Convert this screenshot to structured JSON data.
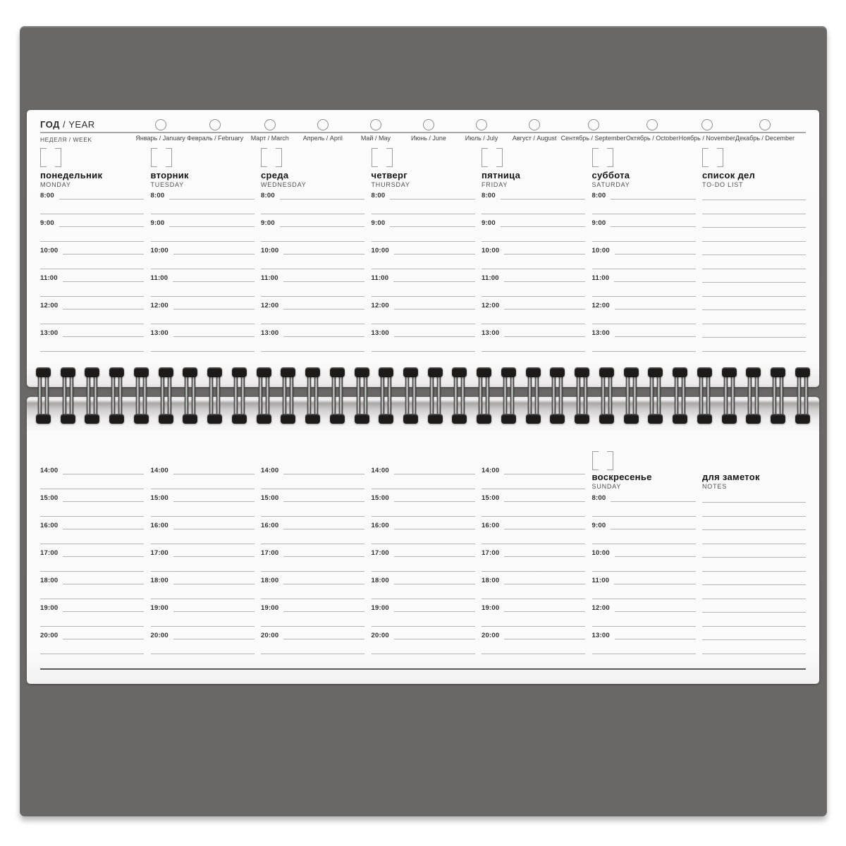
{
  "header": {
    "year_ru": "ГОД",
    "year_sep": " / ",
    "year_en": "YEAR",
    "week_label": "НЕДЕЛЯ / WEEK",
    "months": [
      "Январь / January",
      "Февраль / February",
      "Март / March",
      "Апрель / April",
      "Май / May",
      "Июнь / June",
      "Июль / July",
      "Август / August",
      "Сентябрь / September",
      "Октябрь / October",
      "Ноябрь / November",
      "Декабрь / December"
    ]
  },
  "top_page": {
    "days": [
      {
        "name_ru": "понедельник",
        "name_en": "MONDAY"
      },
      {
        "name_ru": "вторник",
        "name_en": "TUESDAY"
      },
      {
        "name_ru": "среда",
        "name_en": "WEDNESDAY"
      },
      {
        "name_ru": "четверг",
        "name_en": "THURSDAY"
      },
      {
        "name_ru": "пятница",
        "name_en": "FRIDAY"
      },
      {
        "name_ru": "суббота",
        "name_en": "SATURDAY"
      }
    ],
    "times": [
      "8:00",
      "9:00",
      "10:00",
      "11:00",
      "12:00",
      "13:00"
    ],
    "todo": {
      "title_ru": "список дел",
      "title_en": "TO-DO LIST",
      "line_count": 12
    }
  },
  "bottom_page": {
    "times": [
      "14:00",
      "15:00",
      "16:00",
      "17:00",
      "18:00",
      "19:00",
      "20:00"
    ],
    "weekday_column_count": 5,
    "sunday": {
      "name_ru": "воскресенье",
      "name_en": "SUNDAY",
      "times": [
        "8:00",
        "9:00",
        "10:00",
        "11:00",
        "12:00",
        "13:00"
      ]
    },
    "notes": {
      "title_ru": "для заметок",
      "title_en": "NOTES",
      "line_count": 12
    }
  },
  "binding": {
    "coil_count": 32
  },
  "colors": {
    "pad": "#6a6767",
    "page": "#fbfbfb",
    "rule_light": "#b4b4b4",
    "rule_dark": "#5a5a5a",
    "coil_cap": "#1d1a1a"
  }
}
